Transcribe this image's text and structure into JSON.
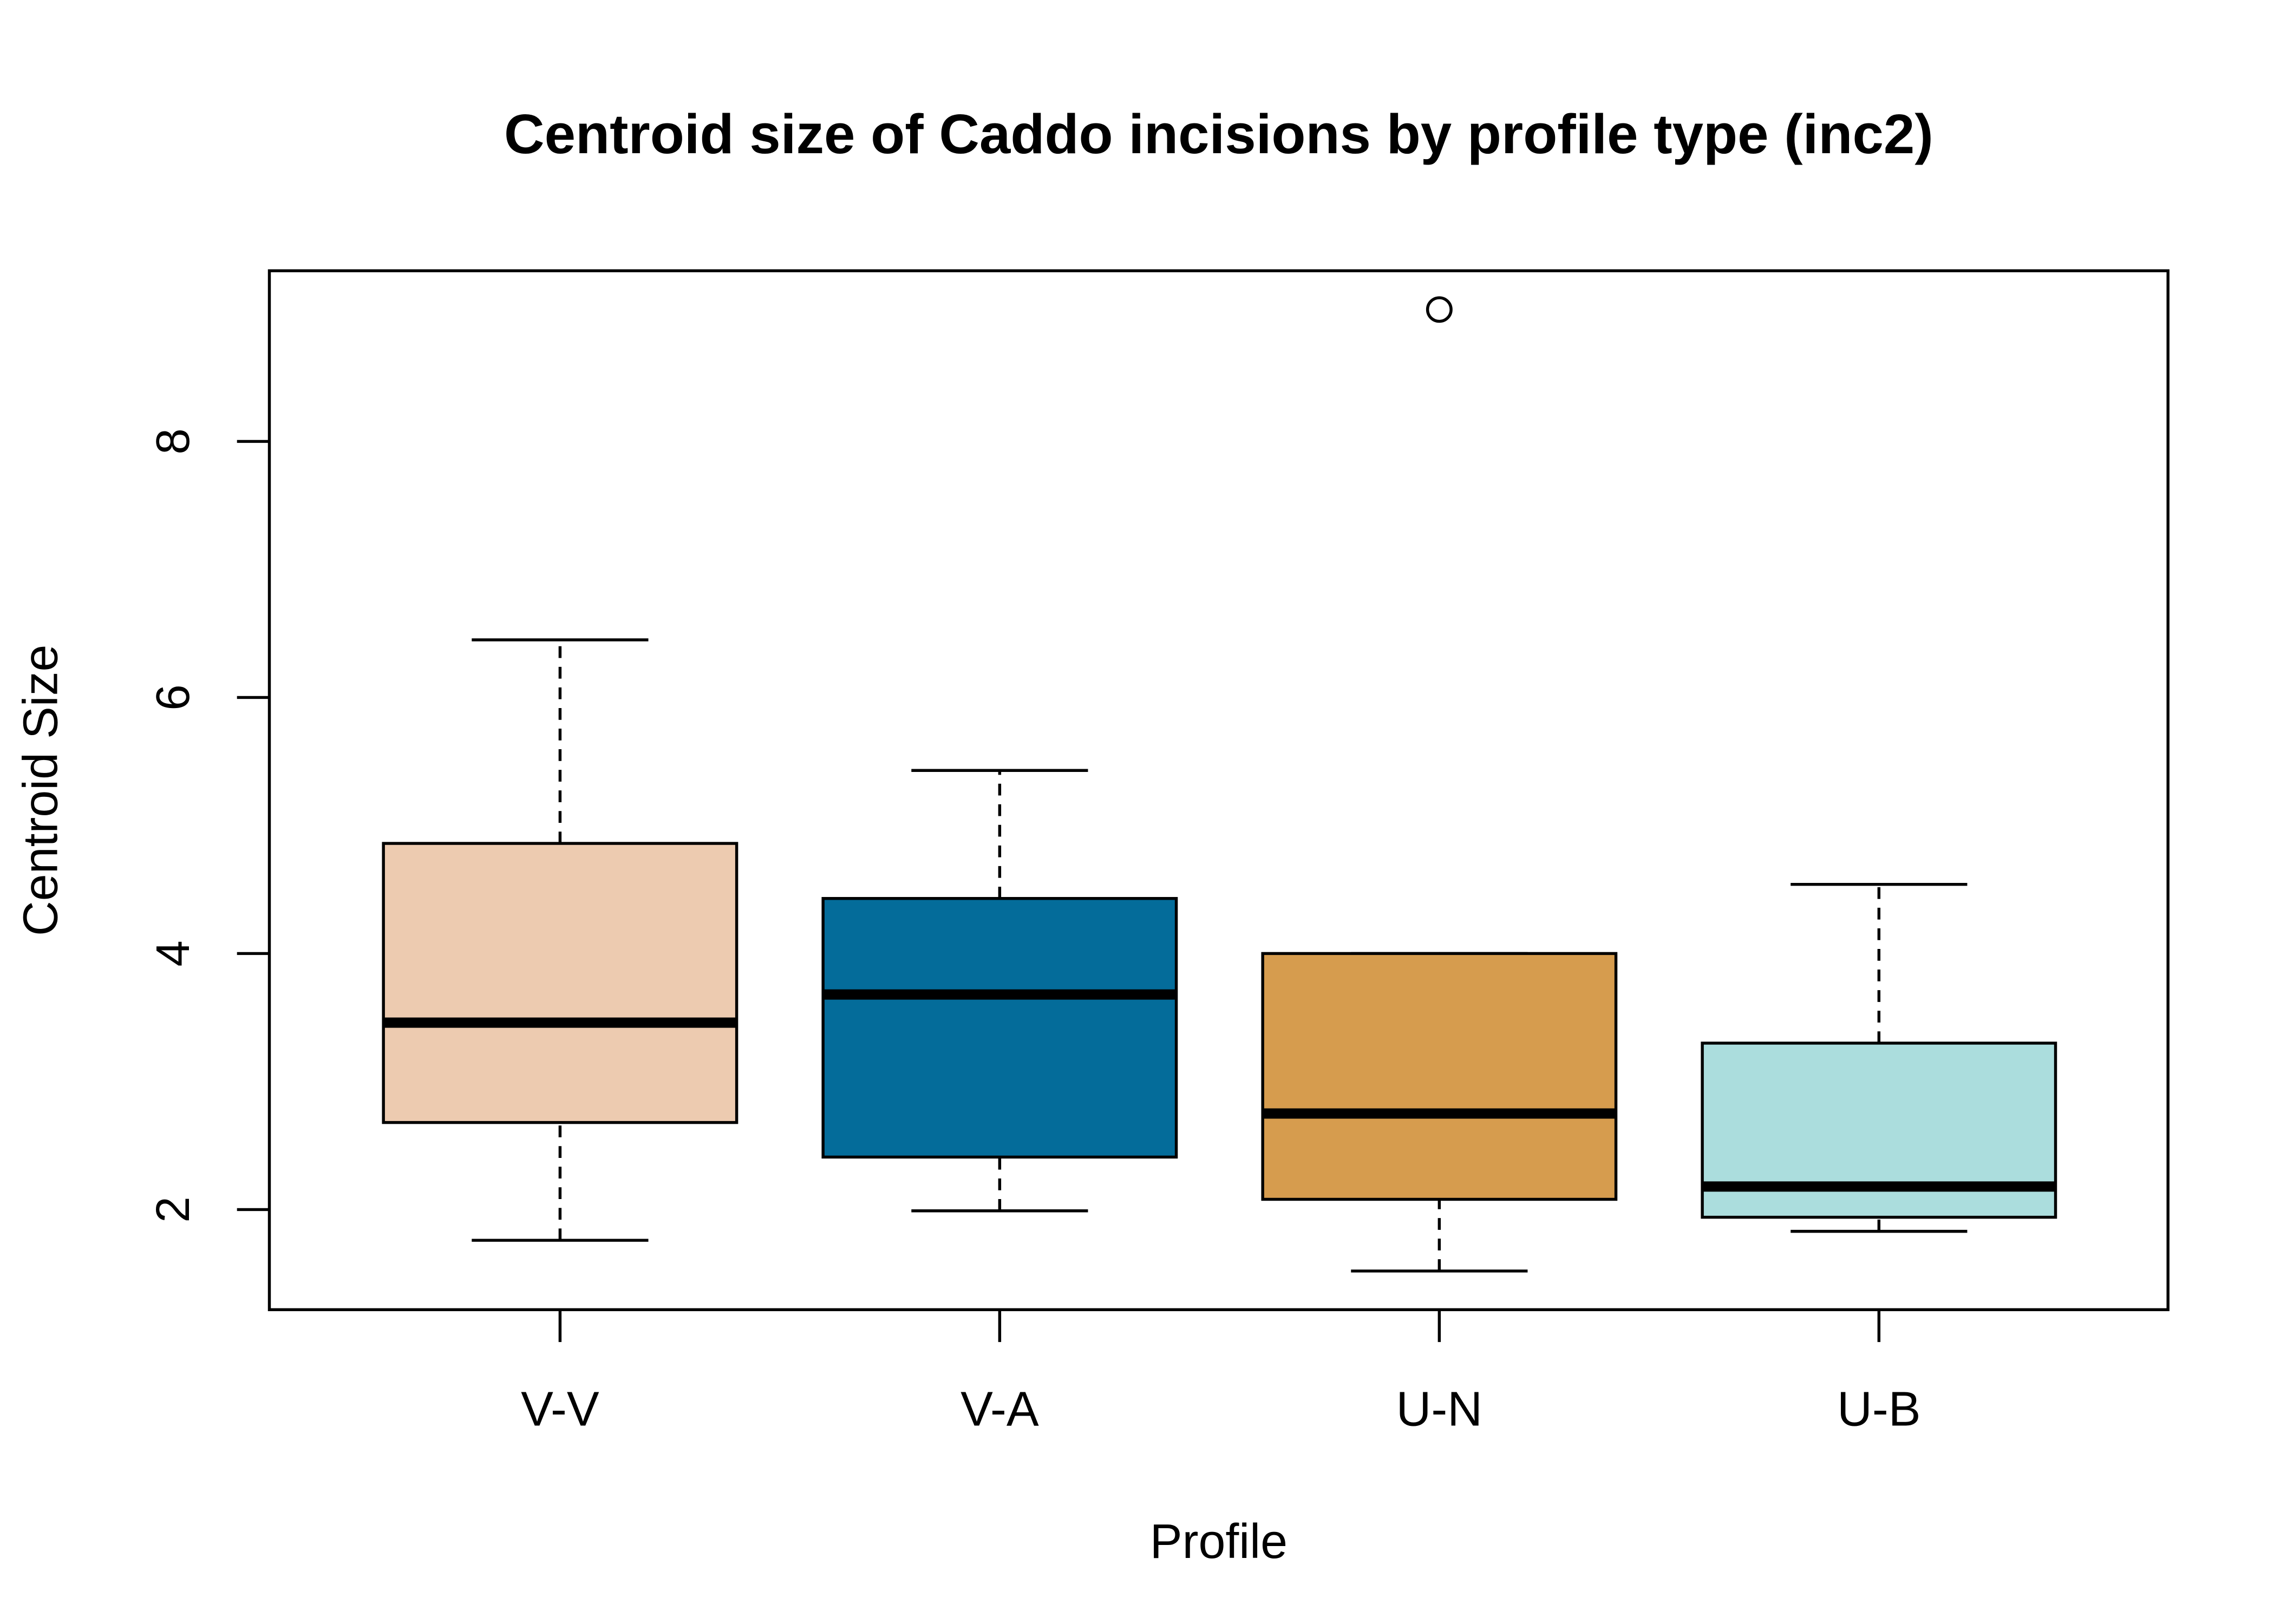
{
  "chart_data": {
    "type": "box",
    "title": "Centroid size of Caddo incisions by profile type (inc2)",
    "x_label": "Profile",
    "y_label": "Centroid Size",
    "categories": [
      "V-V",
      "V-A",
      "U-N",
      "U-B"
    ],
    "whisker_low": [
      1.76,
      1.99,
      1.52,
      1.83
    ],
    "q1": [
      2.68,
      2.41,
      2.08,
      1.94
    ],
    "median": [
      3.46,
      3.68,
      2.75,
      2.18
    ],
    "q3": [
      4.86,
      4.43,
      4.0,
      3.3
    ],
    "whisker_high": [
      6.45,
      5.43,
      4.0,
      4.54
    ],
    "outliers": [
      [],
      [],
      [
        9.03
      ],
      []
    ],
    "colors": [
      "#edcbb0",
      "#046c9a",
      "#d69c4e",
      "#abdddd"
    ],
    "ylim": [
      1.218,
      9.333
    ],
    "yticks": [
      2,
      4,
      6,
      8
    ],
    "grid": false
  }
}
